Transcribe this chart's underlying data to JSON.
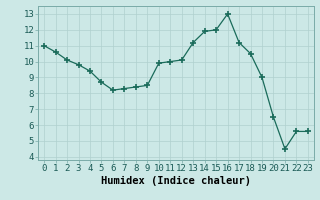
{
  "x": [
    0,
    1,
    2,
    3,
    4,
    5,
    6,
    7,
    8,
    9,
    10,
    11,
    12,
    13,
    14,
    15,
    16,
    17,
    18,
    19,
    20,
    21,
    22,
    23
  ],
  "y": [
    11.0,
    10.6,
    10.1,
    9.8,
    9.4,
    8.7,
    8.2,
    8.3,
    8.4,
    8.5,
    9.9,
    10.0,
    10.1,
    11.2,
    11.9,
    12.0,
    13.0,
    11.2,
    10.5,
    9.0,
    6.5,
    4.5,
    5.6,
    5.6
  ],
  "line_color": "#1a6b5a",
  "marker": "+",
  "marker_size": 4,
  "bg_color": "#cce8e6",
  "grid_major_color": "#b0d0ce",
  "grid_minor_color": "#c2dcda",
  "xlabel": "Humidex (Indice chaleur)",
  "xlim": [
    -0.5,
    23.5
  ],
  "ylim": [
    3.8,
    13.5
  ],
  "xticks": [
    0,
    1,
    2,
    3,
    4,
    5,
    6,
    7,
    8,
    9,
    10,
    11,
    12,
    13,
    14,
    15,
    16,
    17,
    18,
    19,
    20,
    21,
    22,
    23
  ],
  "yticks": [
    4,
    5,
    6,
    7,
    8,
    9,
    10,
    11,
    12,
    13
  ],
  "tick_fontsize": 6.5,
  "label_fontsize": 7.5
}
